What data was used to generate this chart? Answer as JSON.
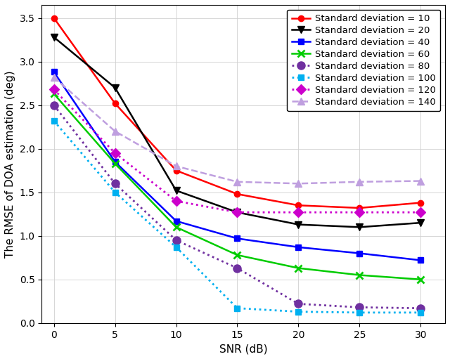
{
  "snr": [
    0,
    5,
    10,
    15,
    20,
    25,
    30
  ],
  "series": [
    {
      "label": "Standard deviation = 10",
      "color": "#ff0000",
      "linestyle": "-",
      "marker": "o",
      "markersize": 6,
      "linewidth": 1.8,
      "values": [
        3.5,
        2.52,
        1.75,
        1.48,
        1.35,
        1.32,
        1.38
      ]
    },
    {
      "label": "Standard deviation = 20",
      "color": "#000000",
      "linestyle": "-",
      "marker": "v",
      "markersize": 7,
      "linewidth": 1.8,
      "values": [
        3.28,
        2.7,
        1.52,
        1.27,
        1.13,
        1.1,
        1.15
      ]
    },
    {
      "label": "Standard deviation = 40",
      "color": "#0000ff",
      "linestyle": "-",
      "marker": "s",
      "markersize": 6,
      "linewidth": 1.8,
      "values": [
        2.88,
        1.85,
        1.17,
        0.97,
        0.87,
        0.8,
        0.72
      ]
    },
    {
      "label": "Standard deviation = 60",
      "color": "#00cc00",
      "linestyle": "-",
      "marker": "x",
      "markersize": 7,
      "linewidth": 1.8,
      "markeredgewidth": 2.0,
      "values": [
        2.63,
        1.83,
        1.1,
        0.78,
        0.63,
        0.55,
        0.5
      ]
    },
    {
      "label": "Standard deviation = 80",
      "color": "#7030a0",
      "linestyle": "dotted",
      "marker": "o",
      "markersize": 8,
      "linewidth": 2.0,
      "values": [
        2.5,
        1.6,
        0.95,
        0.63,
        0.22,
        0.18,
        0.17
      ]
    },
    {
      "label": "Standard deviation = 100",
      "color": "#00b0f0",
      "linestyle": "dotted",
      "marker": "s",
      "markersize": 6,
      "linewidth": 2.0,
      "values": [
        2.32,
        1.5,
        0.87,
        0.17,
        0.13,
        0.12,
        0.12
      ]
    },
    {
      "label": "Standard deviation = 120",
      "color": "#cc00cc",
      "linestyle": "dotted",
      "marker": "D",
      "markersize": 7,
      "linewidth": 2.0,
      "values": [
        2.68,
        1.95,
        1.4,
        1.27,
        1.27,
        1.27,
        1.27
      ]
    },
    {
      "label": "Standard deviation = 140",
      "color": "#bf9fdf",
      "linestyle": "--",
      "marker": "^",
      "markersize": 7,
      "linewidth": 1.8,
      "values": [
        2.82,
        2.2,
        1.8,
        1.62,
        1.6,
        1.62,
        1.63
      ]
    }
  ],
  "xlabel": "SNR (dB)",
  "ylabel": "The RMSE of DOA estimation (deg)",
  "xlim": [
    -1,
    32
  ],
  "ylim": [
    0.0,
    3.65
  ],
  "xticks": [
    0,
    5,
    10,
    15,
    20,
    25,
    30
  ],
  "yticks": [
    0.0,
    0.5,
    1.0,
    1.5,
    2.0,
    2.5,
    3.0,
    3.5
  ],
  "grid": true,
  "legend_loc": "upper right",
  "axis_fontsize": 11,
  "tick_fontsize": 10,
  "legend_fontsize": 9.5
}
